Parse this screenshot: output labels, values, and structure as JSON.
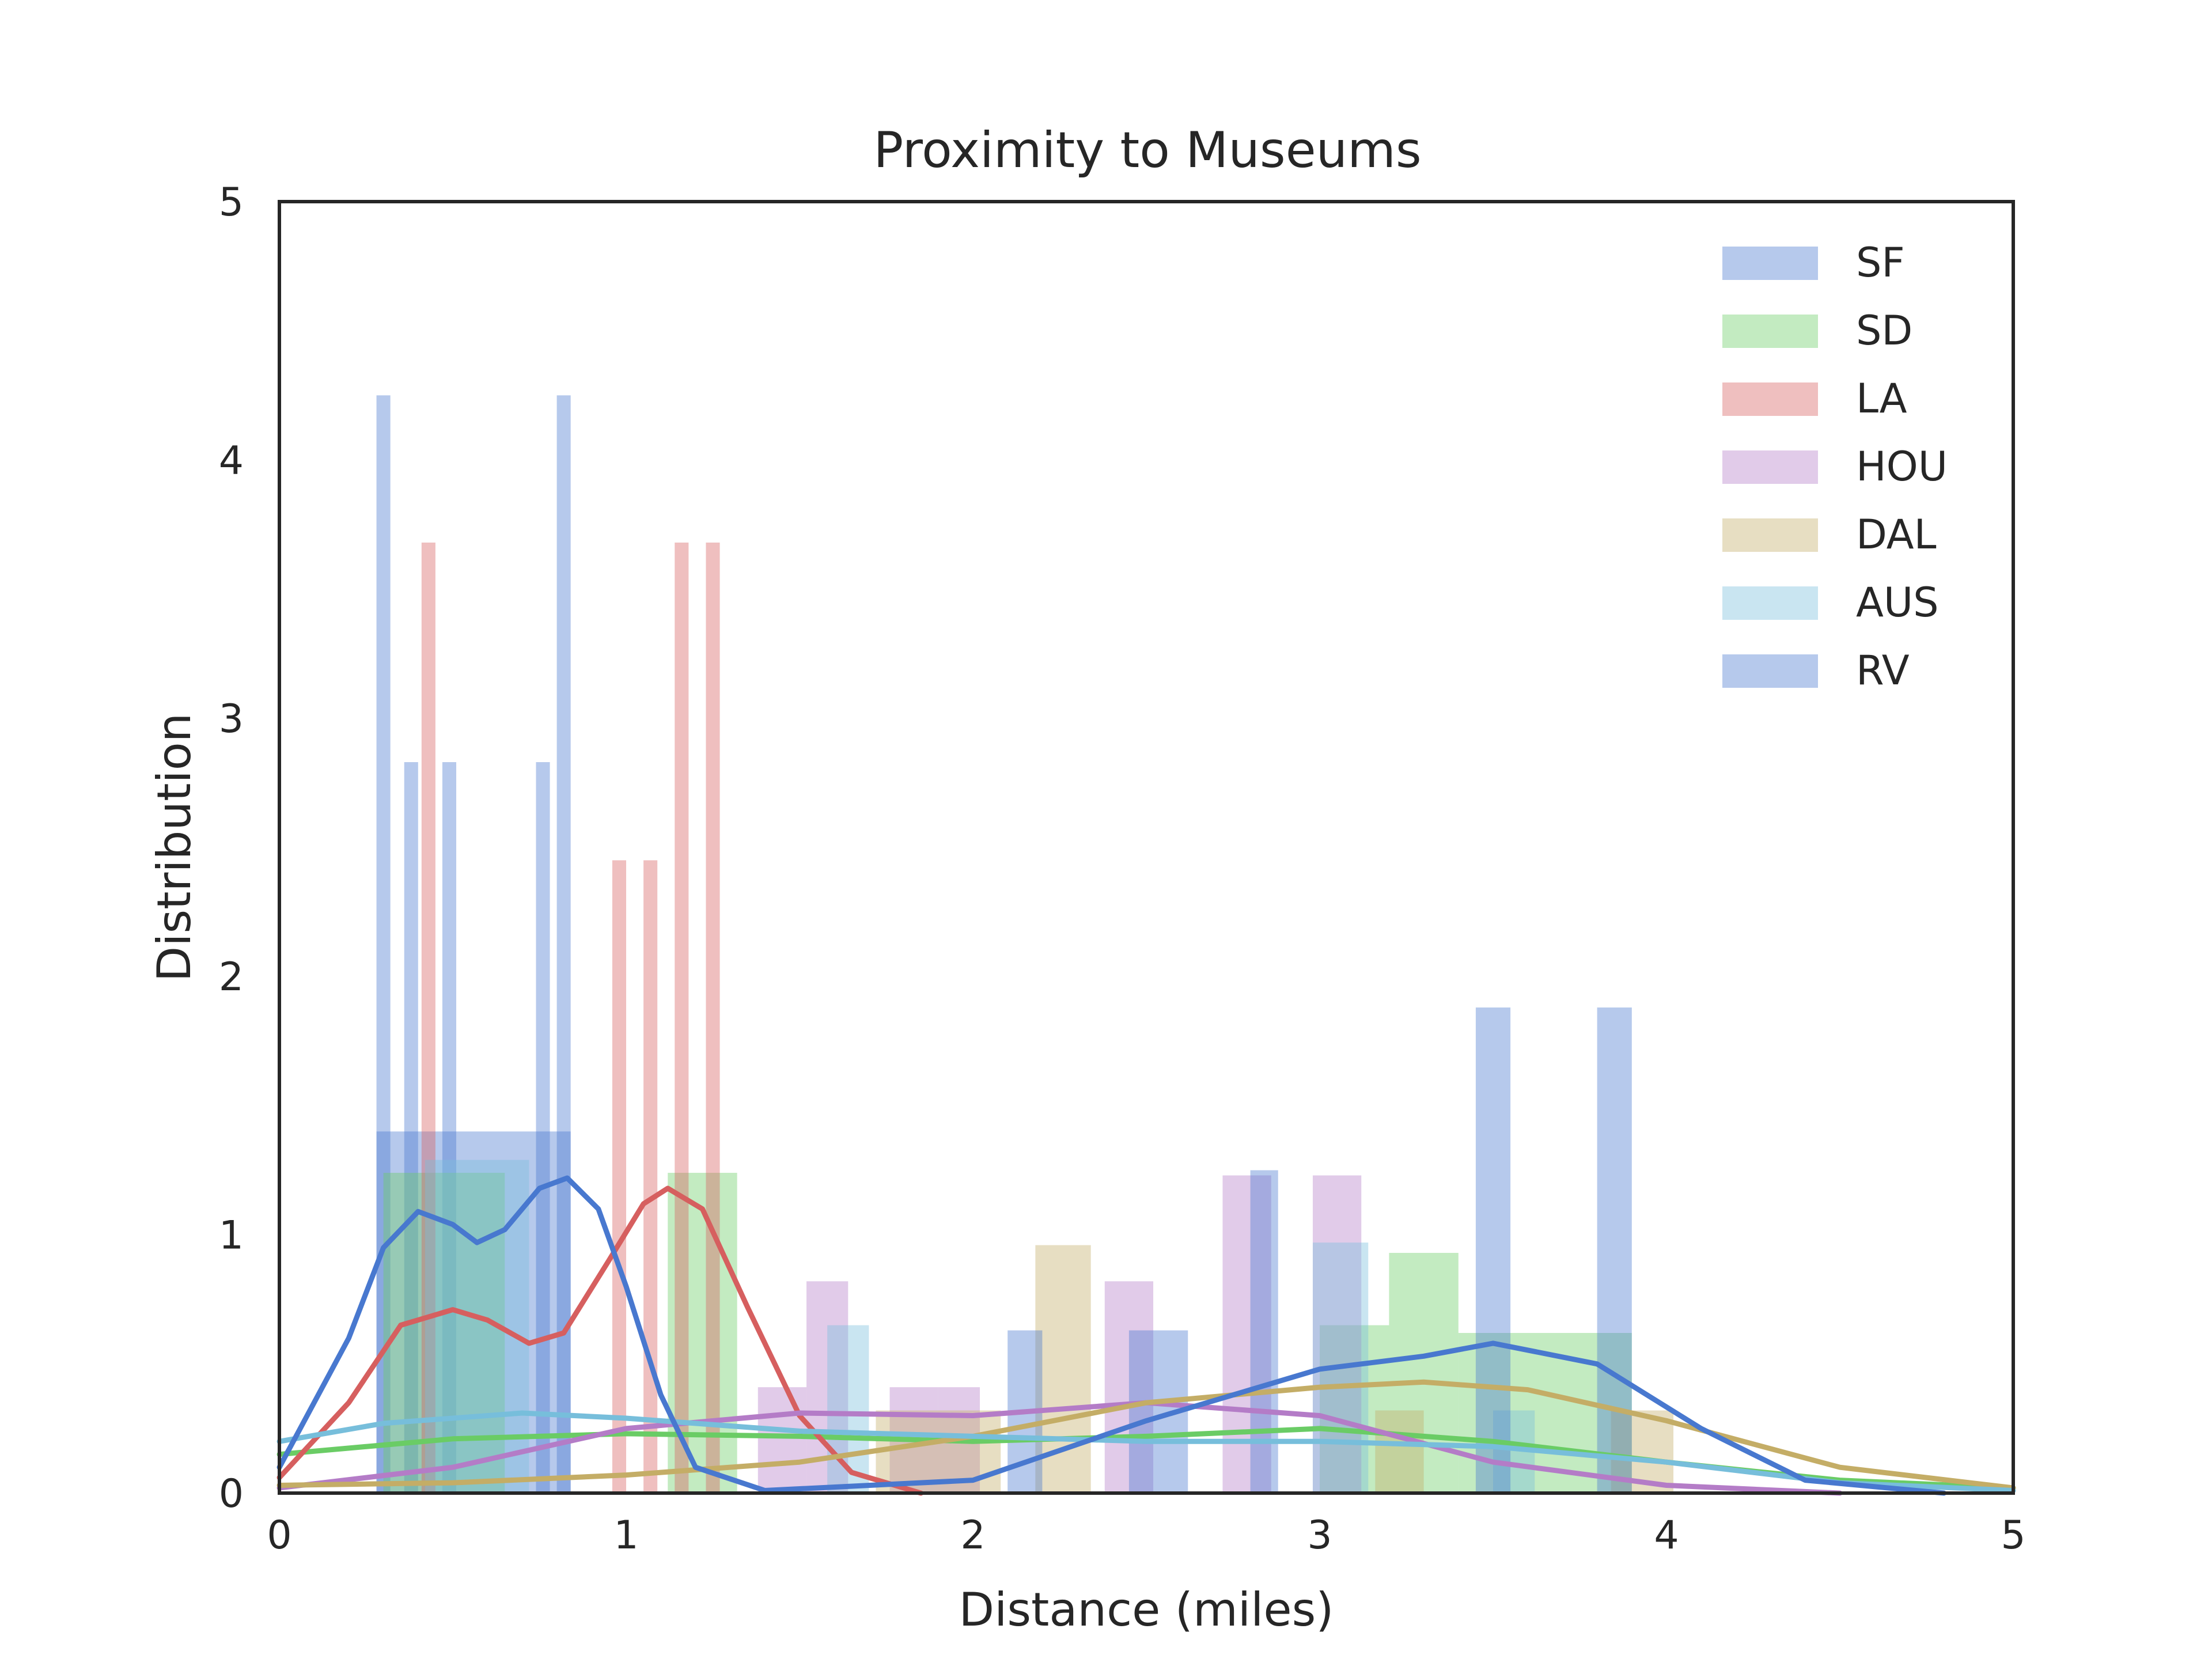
{
  "chart_data": {
    "type": "histogram",
    "title": "Proximity to Museums",
    "xlabel": "Distance (miles)",
    "ylabel": "Distribution",
    "xlim": [
      0,
      5
    ],
    "ylim": [
      0,
      5
    ],
    "xticks": [
      "0",
      "1",
      "2",
      "3",
      "4",
      "5"
    ],
    "yticks": [
      "0",
      "1",
      "2",
      "3",
      "4",
      "5"
    ],
    "grid": false,
    "legend_position": "top-right",
    "series": [
      {
        "name": "SF",
        "color": "#4878cf",
        "bars": [
          {
            "x0": 0.28,
            "x1": 0.32,
            "y": 4.25
          },
          {
            "x0": 0.36,
            "x1": 0.4,
            "y": 2.83
          },
          {
            "x0": 0.47,
            "x1": 0.51,
            "y": 2.83
          },
          {
            "x0": 0.74,
            "x1": 0.78,
            "y": 2.83
          },
          {
            "x0": 0.8,
            "x1": 0.84,
            "y": 4.25
          },
          {
            "x0": 0.28,
            "x1": 0.84,
            "y": 1.4
          }
        ],
        "kde": []
      },
      {
        "name": "SD",
        "color": "#6acc65",
        "bars": [
          {
            "x0": 0.3,
            "x1": 0.65,
            "y": 1.24
          },
          {
            "x0": 1.12,
            "x1": 1.32,
            "y": 1.24
          },
          {
            "x0": 3.0,
            "x1": 3.2,
            "y": 0.65
          },
          {
            "x0": 3.2,
            "x1": 3.4,
            "y": 0.93
          },
          {
            "x0": 3.4,
            "x1": 3.9,
            "y": 0.62
          }
        ],
        "kde": [
          [
            0,
            0.15
          ],
          [
            0.5,
            0.21
          ],
          [
            1,
            0.23
          ],
          [
            1.5,
            0.22
          ],
          [
            2,
            0.2
          ],
          [
            2.5,
            0.22
          ],
          [
            3,
            0.25
          ],
          [
            3.5,
            0.2
          ],
          [
            4,
            0.12
          ],
          [
            4.5,
            0.05
          ],
          [
            5,
            0.02
          ]
        ]
      },
      {
        "name": "LA",
        "color": "#d65f5f",
        "bars": [
          {
            "x0": 0.41,
            "x1": 0.45,
            "y": 3.68
          },
          {
            "x0": 0.96,
            "x1": 1.0,
            "y": 2.45
          },
          {
            "x0": 1.05,
            "x1": 1.09,
            "y": 2.45
          },
          {
            "x0": 1.14,
            "x1": 1.18,
            "y": 3.68
          },
          {
            "x0": 1.23,
            "x1": 1.27,
            "y": 3.68
          }
        ],
        "kde": [
          [
            0,
            0.06
          ],
          [
            0.2,
            0.35
          ],
          [
            0.35,
            0.65
          ],
          [
            0.5,
            0.71
          ],
          [
            0.6,
            0.67
          ],
          [
            0.72,
            0.58
          ],
          [
            0.82,
            0.62
          ],
          [
            0.95,
            0.9
          ],
          [
            1.05,
            1.12
          ],
          [
            1.12,
            1.18
          ],
          [
            1.22,
            1.1
          ],
          [
            1.35,
            0.72
          ],
          [
            1.5,
            0.3
          ],
          [
            1.65,
            0.08
          ],
          [
            1.85,
            0.0
          ]
        ]
      },
      {
        "name": "HOU",
        "color": "#b47cc7",
        "bars": [
          {
            "x0": 1.38,
            "x1": 1.52,
            "y": 0.41
          },
          {
            "x0": 1.52,
            "x1": 1.64,
            "y": 0.82
          },
          {
            "x0": 1.76,
            "x1": 1.9,
            "y": 0.41
          },
          {
            "x0": 1.9,
            "x1": 2.02,
            "y": 0.41
          },
          {
            "x0": 2.38,
            "x1": 2.52,
            "y": 0.82
          },
          {
            "x0": 2.72,
            "x1": 2.86,
            "y": 1.23
          },
          {
            "x0": 2.98,
            "x1": 3.12,
            "y": 1.23
          }
        ],
        "kde": [
          [
            0,
            0.02
          ],
          [
            0.5,
            0.1
          ],
          [
            1,
            0.25
          ],
          [
            1.5,
            0.31
          ],
          [
            2,
            0.3
          ],
          [
            2.5,
            0.35
          ],
          [
            3,
            0.3
          ],
          [
            3.5,
            0.12
          ],
          [
            4,
            0.03
          ],
          [
            4.5,
            0.0
          ]
        ]
      },
      {
        "name": "DAL",
        "color": "#c4ad66",
        "bars": [
          {
            "x0": 2.18,
            "x1": 2.34,
            "y": 0.96
          },
          {
            "x0": 1.72,
            "x1": 2.08,
            "y": 0.32
          },
          {
            "x0": 3.16,
            "x1": 3.3,
            "y": 0.32
          },
          {
            "x0": 3.84,
            "x1": 4.02,
            "y": 0.32
          }
        ],
        "kde": [
          [
            0,
            0.03
          ],
          [
            0.5,
            0.04
          ],
          [
            1,
            0.07
          ],
          [
            1.5,
            0.12
          ],
          [
            2,
            0.22
          ],
          [
            2.5,
            0.35
          ],
          [
            3,
            0.41
          ],
          [
            3.3,
            0.43
          ],
          [
            3.6,
            0.4
          ],
          [
            4,
            0.28
          ],
          [
            4.5,
            0.1
          ],
          [
            5,
            0.02
          ]
        ]
      },
      {
        "name": "AUS",
        "color": "#77bedb",
        "bars": [
          {
            "x0": 0.42,
            "x1": 0.72,
            "y": 1.29
          },
          {
            "x0": 1.58,
            "x1": 1.7,
            "y": 0.65
          },
          {
            "x0": 2.98,
            "x1": 3.14,
            "y": 0.97
          },
          {
            "x0": 3.5,
            "x1": 3.62,
            "y": 0.32
          }
        ],
        "kde": [
          [
            0,
            0.2
          ],
          [
            0.3,
            0.27
          ],
          [
            0.7,
            0.31
          ],
          [
            1,
            0.29
          ],
          [
            1.5,
            0.24
          ],
          [
            2,
            0.22
          ],
          [
            2.5,
            0.2
          ],
          [
            3,
            0.2
          ],
          [
            3.5,
            0.18
          ],
          [
            4,
            0.12
          ],
          [
            4.5,
            0.04
          ],
          [
            5,
            0.01
          ]
        ]
      },
      {
        "name": "RV",
        "color": "#4878cf",
        "bars": [
          {
            "x0": 2.8,
            "x1": 2.88,
            "y": 1.25
          },
          {
            "x0": 2.1,
            "x1": 2.2,
            "y": 0.63
          },
          {
            "x0": 2.45,
            "x1": 2.62,
            "y": 0.63
          },
          {
            "x0": 3.45,
            "x1": 3.55,
            "y": 1.88
          },
          {
            "x0": 3.8,
            "x1": 3.9,
            "y": 1.88
          }
        ],
        "kde": [
          [
            0,
            0.1
          ],
          [
            0.2,
            0.6
          ],
          [
            0.3,
            0.95
          ],
          [
            0.4,
            1.09
          ],
          [
            0.5,
            1.04
          ],
          [
            0.57,
            0.97
          ],
          [
            0.65,
            1.02
          ],
          [
            0.75,
            1.18
          ],
          [
            0.83,
            1.22
          ],
          [
            0.92,
            1.1
          ],
          [
            1.0,
            0.8
          ],
          [
            1.1,
            0.38
          ],
          [
            1.2,
            0.1
          ],
          [
            1.4,
            0.01
          ],
          [
            2,
            0.05
          ],
          [
            2.5,
            0.28
          ],
          [
            3,
            0.48
          ],
          [
            3.3,
            0.53
          ],
          [
            3.5,
            0.58
          ],
          [
            3.8,
            0.5
          ],
          [
            4.1,
            0.25
          ],
          [
            4.4,
            0.05
          ],
          [
            4.8,
            0.0
          ]
        ]
      }
    ]
  }
}
